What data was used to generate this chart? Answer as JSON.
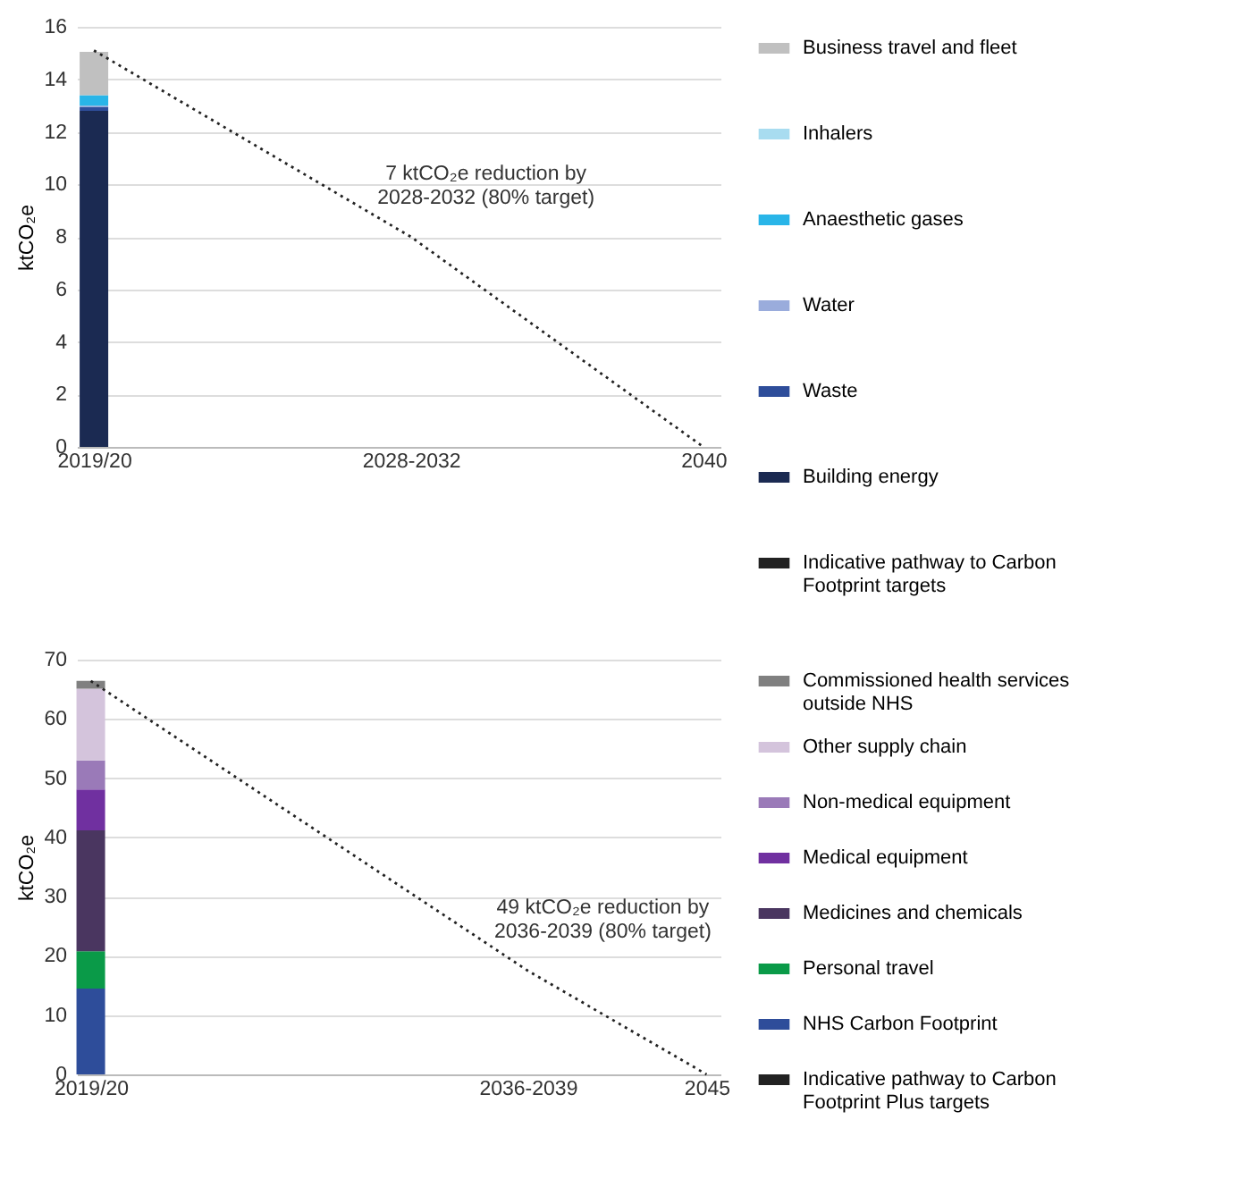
{
  "chart_data": [
    {
      "type": "bar",
      "stacked": true,
      "categories": [
        "2019/20",
        null,
        null,
        null,
        null,
        null,
        null,
        null,
        null,
        null,
        null,
        null,
        null,
        "2028-2032",
        null,
        null,
        null,
        null,
        null,
        null,
        null,
        null,
        null,
        null,
        null,
        "2040"
      ],
      "ylabel": "ktCO₂e",
      "ylim": [
        0,
        16
      ],
      "yticks": [
        0,
        2,
        4,
        6,
        8,
        10,
        12,
        14,
        16
      ],
      "grid": "y",
      "legend": "right",
      "series": [
        {
          "name": "Building energy",
          "color": "#1b2a52",
          "values": [
            12.8,
            null,
            null,
            null,
            null,
            null,
            null,
            null,
            null,
            null,
            null,
            null,
            null,
            null,
            null,
            null,
            null,
            null,
            null,
            null,
            null,
            null,
            null,
            null,
            null,
            null
          ]
        },
        {
          "name": "Waste",
          "color": "#2e4d9a",
          "values": [
            0.15,
            null,
            null,
            null,
            null,
            null,
            null,
            null,
            null,
            null,
            null,
            null,
            null,
            null,
            null,
            null,
            null,
            null,
            null,
            null,
            null,
            null,
            null,
            null,
            null,
            null
          ]
        },
        {
          "name": "Water",
          "color": "#9aacdc",
          "values": [
            0.05,
            null,
            null,
            null,
            null,
            null,
            null,
            null,
            null,
            null,
            null,
            null,
            null,
            null,
            null,
            null,
            null,
            null,
            null,
            null,
            null,
            null,
            null,
            null,
            null,
            null
          ]
        },
        {
          "name": "Anaesthetic gases",
          "color": "#29b5e8",
          "values": [
            0.4,
            null,
            null,
            null,
            null,
            null,
            null,
            null,
            null,
            null,
            null,
            null,
            null,
            null,
            null,
            null,
            null,
            null,
            null,
            null,
            null,
            null,
            null,
            null,
            null,
            null
          ]
        },
        {
          "name": "Inhalers",
          "color": "#a8dcf0",
          "values": [
            null,
            null,
            null,
            null,
            null,
            null,
            null,
            null,
            null,
            null,
            null,
            null,
            null,
            null,
            null,
            null,
            null,
            null,
            null,
            null,
            null,
            null,
            null,
            null,
            null,
            null
          ]
        },
        {
          "name": "Business travel and fleet",
          "color": "#c0c0c0",
          "values": [
            1.65,
            null,
            null,
            null,
            null,
            null,
            null,
            null,
            null,
            null,
            null,
            null,
            null,
            null,
            null,
            null,
            null,
            null,
            null,
            null,
            null,
            null,
            null,
            null,
            null,
            null
          ]
        },
        {
          "name": "Indicative pathway to Carbon Footprint targets",
          "type": "line",
          "color": "#222222",
          "line_style": "dotted",
          "values": [
            15.1,
            null,
            null,
            null,
            null,
            null,
            null,
            null,
            null,
            null,
            null,
            null,
            null,
            8,
            null,
            null,
            null,
            null,
            null,
            null,
            null,
            null,
            null,
            null,
            null,
            0
          ]
        }
      ],
      "annotations": [
        {
          "text": "7 ktCO₂e reduction by 2028-2032 (80% target)",
          "x": "2028-2032",
          "y": 8
        }
      ]
    },
    {
      "type": "bar",
      "stacked": true,
      "categories": [
        "2019/20",
        null,
        null,
        null,
        null,
        null,
        null,
        null,
        null,
        null,
        null,
        null,
        null,
        null,
        null,
        null,
        null,
        null,
        null,
        null,
        null,
        null,
        "2036-2039",
        null,
        null,
        null,
        null,
        null,
        null,
        null,
        null,
        "2045"
      ],
      "ylabel": "ktCO₂e",
      "ylim": [
        0,
        70
      ],
      "yticks": [
        0,
        10,
        20,
        30,
        40,
        50,
        60,
        70
      ],
      "grid": "y",
      "legend": "right",
      "series": [
        {
          "name": "NHS Carbon Footprint",
          "color": "#2e4d9a",
          "values": [
            14.5,
            null,
            null,
            null,
            null,
            null,
            null,
            null,
            null,
            null,
            null,
            null,
            null,
            null,
            null,
            null,
            null,
            null,
            null,
            null,
            null,
            null,
            null,
            null,
            null,
            null,
            null,
            null,
            null,
            null,
            null,
            null
          ]
        },
        {
          "name": "Personal travel",
          "color": "#0a9a48",
          "values": [
            6.3,
            null,
            null,
            null,
            null,
            null,
            null,
            null,
            null,
            null,
            null,
            null,
            null,
            null,
            null,
            null,
            null,
            null,
            null,
            null,
            null,
            null,
            null,
            null,
            null,
            null,
            null,
            null,
            null,
            null,
            null,
            null
          ]
        },
        {
          "name": "Medicines and chemicals",
          "color": "#4a3660",
          "values": [
            20.4,
            null,
            null,
            null,
            null,
            null,
            null,
            null,
            null,
            null,
            null,
            null,
            null,
            null,
            null,
            null,
            null,
            null,
            null,
            null,
            null,
            null,
            null,
            null,
            null,
            null,
            null,
            null,
            null,
            null,
            null,
            null
          ]
        },
        {
          "name": "Medical equipment",
          "color": "#7030a0",
          "values": [
            6.9,
            null,
            null,
            null,
            null,
            null,
            null,
            null,
            null,
            null,
            null,
            null,
            null,
            null,
            null,
            null,
            null,
            null,
            null,
            null,
            null,
            null,
            null,
            null,
            null,
            null,
            null,
            null,
            null,
            null,
            null,
            null
          ]
        },
        {
          "name": "Non-medical equipment",
          "color": "#9a7ab8",
          "values": [
            4.9,
            null,
            null,
            null,
            null,
            null,
            null,
            null,
            null,
            null,
            null,
            null,
            null,
            null,
            null,
            null,
            null,
            null,
            null,
            null,
            null,
            null,
            null,
            null,
            null,
            null,
            null,
            null,
            null,
            null,
            null,
            null
          ]
        },
        {
          "name": "Other supply chain",
          "color": "#d4c4dc",
          "values": [
            12.1,
            null,
            null,
            null,
            null,
            null,
            null,
            null,
            null,
            null,
            null,
            null,
            null,
            null,
            null,
            null,
            null,
            null,
            null,
            null,
            null,
            null,
            null,
            null,
            null,
            null,
            null,
            null,
            null,
            null,
            null,
            null
          ]
        },
        {
          "name": "Commissioned health services outside NHS",
          "color": "#808080",
          "values": [
            1.3,
            null,
            null,
            null,
            null,
            null,
            null,
            null,
            null,
            null,
            null,
            null,
            null,
            null,
            null,
            null,
            null,
            null,
            null,
            null,
            null,
            null,
            null,
            null,
            null,
            null,
            null,
            null,
            null,
            null,
            null,
            null
          ]
        },
        {
          "name": "Indicative pathway to Carbon Footprint Plus targets",
          "type": "line",
          "color": "#222222",
          "line_style": "dotted",
          "values": [
            66.4,
            null,
            null,
            null,
            null,
            null,
            null,
            null,
            null,
            null,
            null,
            null,
            null,
            null,
            null,
            null,
            null,
            null,
            null,
            null,
            null,
            null,
            17.5,
            null,
            null,
            null,
            null,
            null,
            null,
            null,
            null,
            0
          ]
        }
      ],
      "annotations": [
        {
          "text": "49 ktCO₂e reduction by 2036-2039 (80% target)",
          "x": "2036-2039",
          "y": 17.5
        }
      ]
    }
  ]
}
